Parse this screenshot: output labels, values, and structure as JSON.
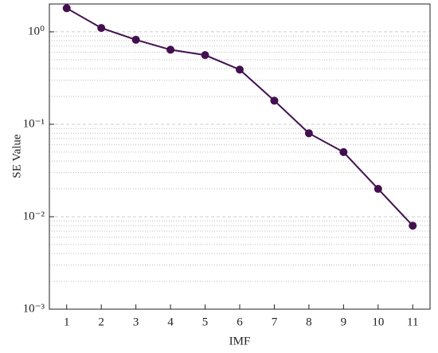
{
  "chart_data": {
    "type": "line",
    "xlabel": "IMF",
    "ylabel": "SE Value",
    "x": [
      1,
      2,
      3,
      4,
      5,
      6,
      7,
      8,
      9,
      10,
      11
    ],
    "series": [
      {
        "color": "#42104f",
        "values": [
          1.8,
          1.1,
          0.82,
          0.64,
          0.56,
          0.39,
          0.18,
          0.08,
          0.05,
          0.02,
          0.008
        ]
      }
    ],
    "xlim": [
      0.5,
      11.5
    ],
    "xticks": [
      1,
      2,
      3,
      4,
      5,
      6,
      7,
      8,
      9,
      10,
      11
    ],
    "ylim": [
      0.001,
      2
    ],
    "yscale": "log",
    "yticks": [
      {
        "value": 0.001,
        "label": "10⁻³"
      },
      {
        "value": 0.01,
        "label": "10⁻²"
      },
      {
        "value": 0.1,
        "label": "10⁻¹"
      },
      {
        "value": 1,
        "label": "10⁰"
      }
    ],
    "grid": "minor"
  }
}
